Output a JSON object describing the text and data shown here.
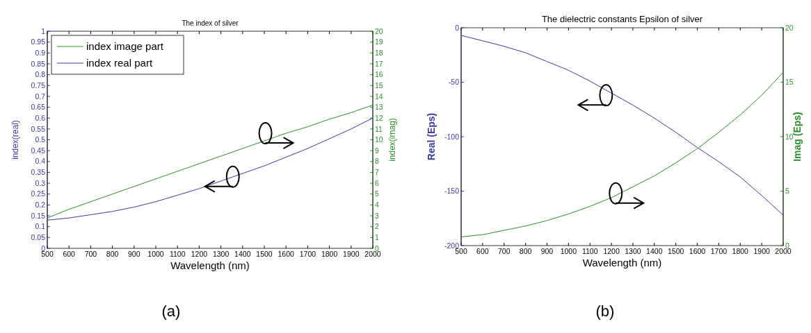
{
  "chart_data": [
    {
      "type": "line",
      "title": "The index of silver",
      "xlabel": "Wavelength (nm)",
      "ylabel": "index(real)",
      "y2label": "index(imag)",
      "x": [
        500,
        600,
        700,
        800,
        900,
        1000,
        1100,
        1200,
        1300,
        1400,
        1500,
        1600,
        1700,
        1800,
        1900,
        2000
      ],
      "xlim": [
        500,
        2000
      ],
      "xticks": [
        500,
        600,
        700,
        800,
        900,
        1000,
        1100,
        1200,
        1300,
        1400,
        1500,
        1600,
        1700,
        1800,
        1900,
        2000
      ],
      "ylim": [
        0,
        1
      ],
      "yticks": [
        0,
        0.05,
        0.1,
        0.15,
        0.2,
        0.25,
        0.3,
        0.35,
        0.4,
        0.45,
        0.5,
        0.55,
        0.6,
        0.65,
        0.7,
        0.75,
        0.8,
        0.85,
        0.9,
        0.95,
        1
      ],
      "y2lim": [
        0,
        20
      ],
      "y2ticks": [
        0,
        1,
        2,
        3,
        4,
        5,
        6,
        7,
        8,
        9,
        10,
        11,
        12,
        13,
        14,
        15,
        16,
        17,
        18,
        19,
        20
      ],
      "legend": "top left",
      "grid": false,
      "series": [
        {
          "name": "index image part",
          "color": "#2e8b2e",
          "axis": "y2",
          "values": [
            2.8,
            3.6,
            4.3,
            5.0,
            5.7,
            6.4,
            7.1,
            7.8,
            8.5,
            9.2,
            9.9,
            10.6,
            11.2,
            11.9,
            12.5,
            13.2
          ]
        },
        {
          "name": "index real part",
          "color": "#3a3a9e",
          "axis": "y",
          "values": [
            0.13,
            0.14,
            0.155,
            0.17,
            0.19,
            0.215,
            0.245,
            0.275,
            0.31,
            0.345,
            0.38,
            0.42,
            0.46,
            0.505,
            0.55,
            0.6
          ]
        }
      ],
      "annotations": [
        "(a)"
      ]
    },
    {
      "type": "line",
      "title": "The dielectric constants Epsilon of silver",
      "xlabel": "Wavelength (nm)",
      "ylabel": "Real (Eps)",
      "y2label": "Imag (Eps)",
      "x": [
        500,
        600,
        700,
        800,
        900,
        1000,
        1100,
        1200,
        1300,
        1400,
        1500,
        1600,
        1700,
        1800,
        1900,
        2000
      ],
      "xlim": [
        500,
        2000
      ],
      "xticks": [
        500,
        600,
        700,
        800,
        900,
        1000,
        1100,
        1200,
        1300,
        1400,
        1500,
        1600,
        1700,
        1800,
        1900,
        2000
      ],
      "ylim": [
        -200,
        0
      ],
      "yticks": [
        -200,
        -150,
        -100,
        -50,
        0
      ],
      "y2lim": [
        0,
        20
      ],
      "y2ticks": [
        0,
        5,
        10,
        15,
        20
      ],
      "grid": false,
      "series": [
        {
          "color": "#3a3a9e",
          "axis": "y",
          "values": [
            -7,
            -12,
            -17,
            -23,
            -31,
            -39,
            -49,
            -60,
            -71,
            -83,
            -96,
            -110,
            -123,
            -137,
            -154,
            -172
          ]
        },
        {
          "color": "#2e8b2e",
          "axis": "y2",
          "values": [
            0.8,
            1.0,
            1.4,
            1.8,
            2.3,
            2.9,
            3.6,
            4.4,
            5.4,
            6.4,
            7.6,
            8.9,
            10.4,
            12.0,
            13.8,
            15.9
          ]
        }
      ],
      "annotations": [
        "(b)"
      ]
    }
  ]
}
